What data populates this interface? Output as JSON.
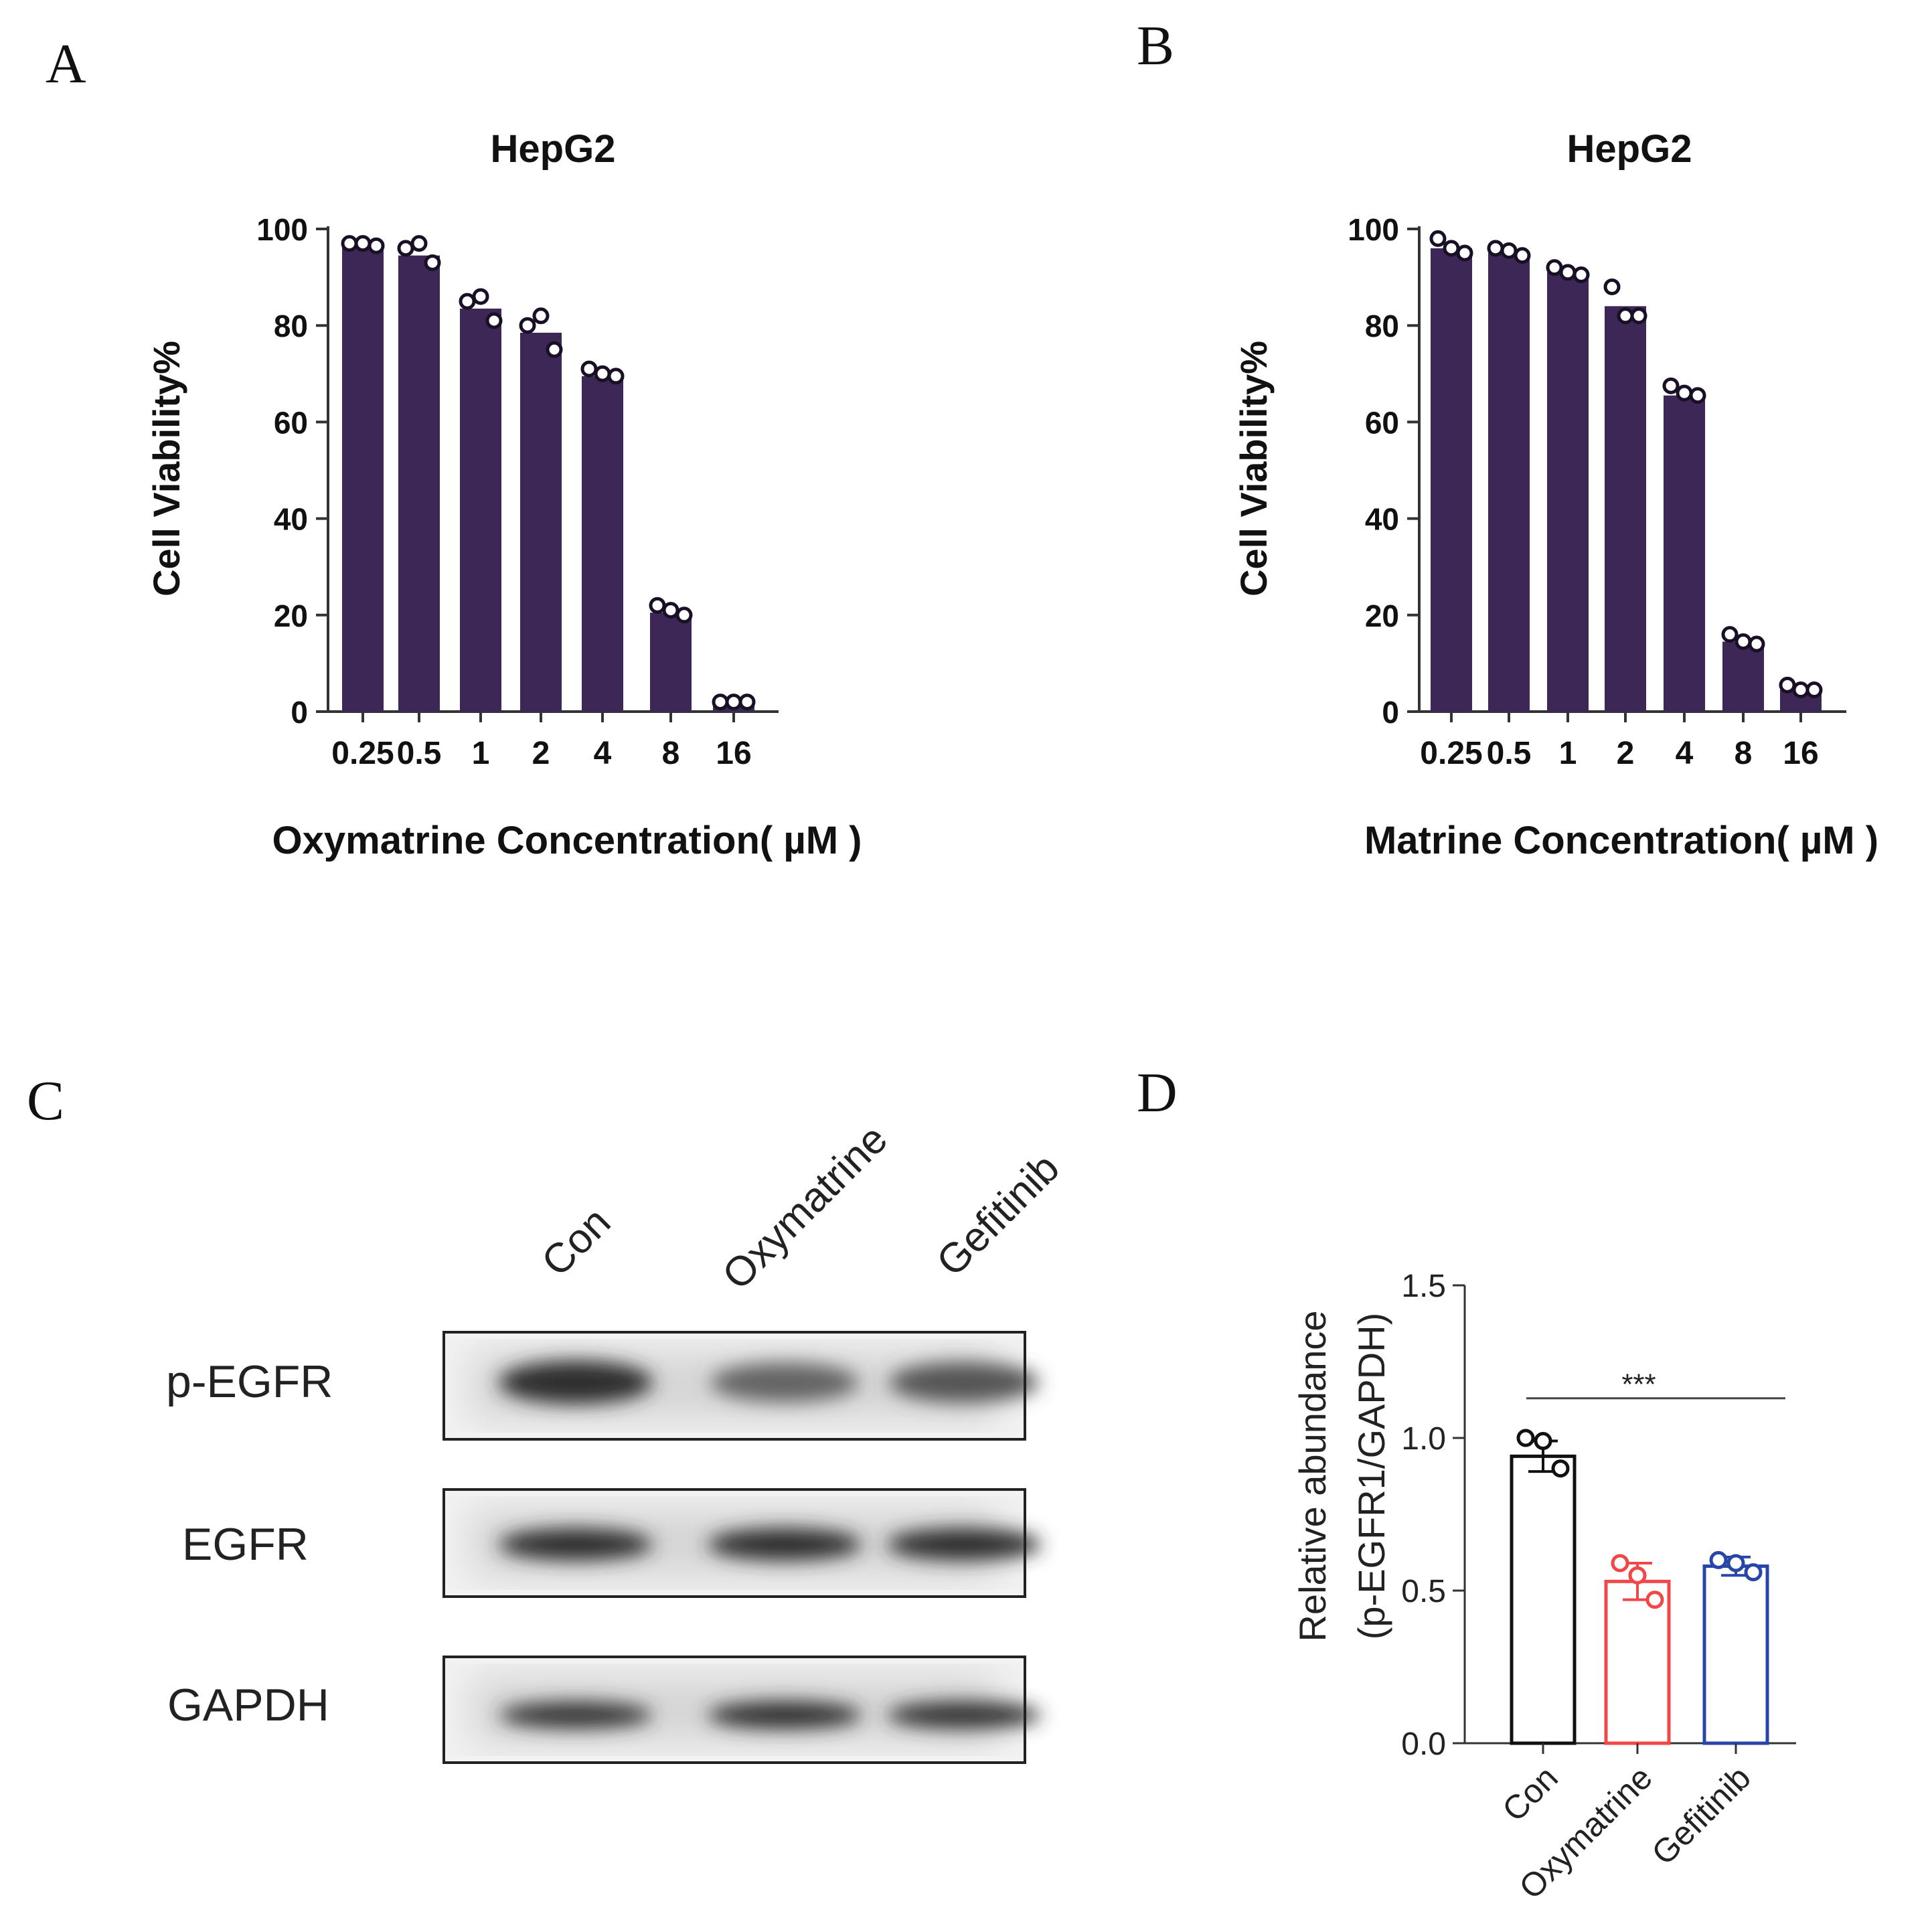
{
  "figure": {
    "panel_letters": [
      "A",
      "B",
      "C",
      "D"
    ]
  },
  "chart_data": [
    {
      "panel": "A",
      "type": "bar",
      "title": "HepG2",
      "xlabel": "Oxymatrine  Concentration( µM )",
      "ylabel": "Cell Viability%",
      "categories": [
        "0.25",
        "0.5",
        "1",
        "2",
        "4",
        "8",
        "16"
      ],
      "values": [
        96.5,
        94.5,
        83.5,
        78.5,
        69.5,
        20.5,
        2
      ],
      "points": [
        [
          97,
          97,
          96.5
        ],
        [
          96,
          97,
          93
        ],
        [
          85,
          86,
          81
        ],
        [
          80,
          82,
          75
        ],
        [
          71,
          70,
          69.5
        ],
        [
          22,
          21,
          20
        ],
        [
          2,
          2,
          2
        ]
      ],
      "ylim": [
        0,
        100
      ],
      "yticks": [
        0,
        20,
        40,
        60,
        80,
        100
      ],
      "color": "#3d2756"
    },
    {
      "panel": "B",
      "type": "bar",
      "title": "HepG2",
      "xlabel": "Matrine  Concentration( µM )",
      "ylabel": "Cell Viability%",
      "categories": [
        "0.25",
        "0.5",
        "1",
        "2",
        "4",
        "8",
        "16"
      ],
      "values": [
        96,
        95,
        91,
        84,
        65.5,
        14.5,
        4.5
      ],
      "points": [
        [
          98,
          96,
          95
        ],
        [
          96,
          95.5,
          94.5
        ],
        [
          92,
          91,
          90.5
        ],
        [
          88,
          82,
          82
        ],
        [
          67.5,
          66,
          65.5
        ],
        [
          16,
          14.5,
          14
        ],
        [
          5.5,
          4.5,
          4.5
        ]
      ],
      "ylim": [
        0,
        100
      ],
      "yticks": [
        0,
        20,
        40,
        60,
        80,
        100
      ],
      "color": "#3d2756"
    },
    {
      "panel": "D",
      "type": "bar",
      "title": "",
      "xlabel": "",
      "ylabel_lines": [
        "Relative abundance",
        "(p-EGFR1/GAPDH)"
      ],
      "categories": [
        "Con",
        "Oxymatrine",
        "Gefitinib"
      ],
      "values": [
        0.94,
        0.53,
        0.58
      ],
      "errors": [
        0.05,
        0.06,
        0.03
      ],
      "points": [
        [
          1.0,
          0.99,
          0.9
        ],
        [
          0.59,
          0.55,
          0.47
        ],
        [
          0.6,
          0.59,
          0.56
        ]
      ],
      "series_colors": [
        "#111111",
        "#f04848",
        "#2846a8"
      ],
      "ylim": [
        0,
        1.5
      ],
      "yticks": [
        "0.0",
        "0.5",
        "1.0",
        "1.5"
      ],
      "significance": "***"
    }
  ],
  "western_blot": {
    "panel": "C",
    "lanes": [
      "Con",
      "Oxymatrine",
      "Gefitinib"
    ],
    "rows": [
      {
        "label": "p-EGFR",
        "intensity": [
          1.0,
          0.7,
          0.78
        ]
      },
      {
        "label": "EGFR",
        "intensity": [
          1.0,
          1.0,
          1.0
        ]
      },
      {
        "label": "GAPDH",
        "intensity": [
          0.95,
          1.0,
          0.98
        ]
      }
    ]
  }
}
